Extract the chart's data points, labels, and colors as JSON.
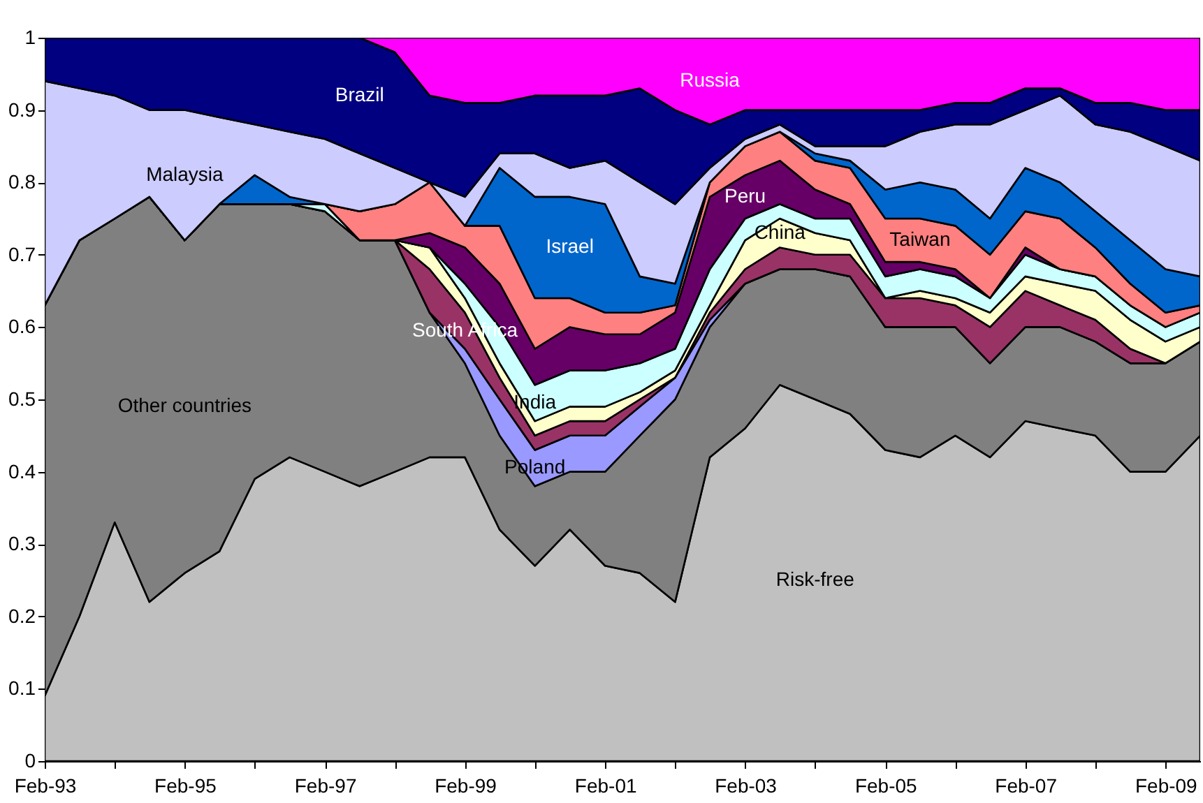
{
  "chart_data": {
    "type": "area",
    "stacked": true,
    "legend": false,
    "grid": false,
    "x": [
      "1993-02",
      "1993-08",
      "1994-02",
      "1994-08",
      "1995-02",
      "1995-08",
      "1996-02",
      "1996-08",
      "1997-02",
      "1997-08",
      "1998-02",
      "1998-08",
      "1999-02",
      "1999-08",
      "2000-02",
      "2000-08",
      "2001-02",
      "2001-08",
      "2002-02",
      "2002-08",
      "2003-02",
      "2003-08",
      "2004-02",
      "2004-08",
      "2005-02",
      "2005-08",
      "2006-02",
      "2006-08",
      "2007-02",
      "2007-08",
      "2008-02",
      "2008-08",
      "2009-02",
      "2009-08"
    ],
    "xlim": [
      "1993-02",
      "2009-08"
    ],
    "xticks": [
      {
        "value": "1993-02",
        "label": "Feb-93"
      },
      {
        "value": "1994-02",
        "label": null
      },
      {
        "value": "1995-02",
        "label": "Feb-95"
      },
      {
        "value": "1996-02",
        "label": null
      },
      {
        "value": "1997-02",
        "label": "Feb-97"
      },
      {
        "value": "1998-02",
        "label": null
      },
      {
        "value": "1999-02",
        "label": "Feb-99"
      },
      {
        "value": "2000-02",
        "label": null
      },
      {
        "value": "2001-02",
        "label": "Feb-01"
      },
      {
        "value": "2002-02",
        "label": null
      },
      {
        "value": "2003-02",
        "label": "Feb-03"
      },
      {
        "value": "2004-02",
        "label": null
      },
      {
        "value": "2005-02",
        "label": "Feb-05"
      },
      {
        "value": "2006-02",
        "label": null
      },
      {
        "value": "2007-02",
        "label": "Feb-07"
      },
      {
        "value": "2008-02",
        "label": null
      },
      {
        "value": "2009-02",
        "label": "Feb-09"
      }
    ],
    "ylim": [
      0,
      1
    ],
    "yticks": [
      0,
      0.1,
      0.2,
      0.3,
      0.4,
      0.5,
      0.6,
      0.7,
      0.8,
      0.9,
      1
    ],
    "series": [
      {
        "name": "Risk-free",
        "color": "#c0c0c0",
        "values": [
          0.09,
          0.2,
          0.33,
          0.22,
          0.26,
          0.29,
          0.39,
          0.42,
          0.4,
          0.38,
          0.4,
          0.42,
          0.42,
          0.32,
          0.27,
          0.32,
          0.27,
          0.26,
          0.22,
          0.42,
          0.46,
          0.52,
          0.5,
          0.48,
          0.43,
          0.42,
          0.45,
          0.42,
          0.47,
          0.46,
          0.45,
          0.4,
          0.4,
          0.45
        ]
      },
      {
        "name": "Other countries",
        "color": "#808080",
        "values": [
          0.54,
          0.52,
          0.42,
          0.56,
          0.46,
          0.48,
          0.38,
          0.35,
          0.36,
          0.34,
          0.32,
          0.2,
          0.13,
          0.13,
          0.11,
          0.08,
          0.13,
          0.19,
          0.28,
          0.18,
          0.2,
          0.16,
          0.18,
          0.19,
          0.17,
          0.18,
          0.15,
          0.13,
          0.13,
          0.14,
          0.13,
          0.15,
          0.15,
          0.13
        ]
      },
      {
        "name": "Poland",
        "color": "#9999ff",
        "values": [
          0,
          0,
          0,
          0,
          0,
          0,
          0,
          0,
          0,
          0,
          0,
          0,
          0.02,
          0.05,
          0.05,
          0.05,
          0.05,
          0.04,
          0.03,
          0.01,
          0,
          0,
          0,
          0,
          0,
          0,
          0,
          0,
          0,
          0,
          0,
          0,
          0,
          0
        ]
      },
      {
        "name": "South Africa",
        "color": "#993366",
        "values": [
          0,
          0,
          0,
          0,
          0,
          0,
          0,
          0,
          0,
          0,
          0,
          0.06,
          0.05,
          0.03,
          0.02,
          0.02,
          0.02,
          0.01,
          0,
          0.01,
          0.02,
          0.03,
          0.02,
          0.03,
          0.04,
          0.04,
          0.03,
          0.05,
          0.05,
          0.03,
          0.03,
          0.02,
          0,
          0
        ]
      },
      {
        "name": "China",
        "color": "#ffffcc",
        "values": [
          0,
          0,
          0,
          0,
          0,
          0,
          0,
          0,
          0,
          0,
          0,
          0.03,
          0.02,
          0.02,
          0.02,
          0.02,
          0.02,
          0.01,
          0.01,
          0.01,
          0.04,
          0.04,
          0.03,
          0.02,
          0,
          0.01,
          0.01,
          0.02,
          0.02,
          0.03,
          0.04,
          0.04,
          0.03,
          0.02
        ]
      },
      {
        "name": "India",
        "color": "#ccffff",
        "values": [
          0,
          0,
          0,
          0,
          0,
          0,
          0,
          0,
          0.01,
          0,
          0,
          0,
          0.02,
          0.05,
          0.05,
          0.05,
          0.05,
          0.04,
          0.03,
          0.05,
          0.03,
          0.02,
          0.02,
          0.03,
          0.03,
          0.03,
          0.03,
          0.02,
          0.03,
          0.02,
          0.02,
          0.02,
          0.02,
          0.02
        ]
      },
      {
        "name": "Peru",
        "color": "#660066",
        "values": [
          0,
          0,
          0,
          0,
          0,
          0,
          0,
          0,
          0,
          0,
          0,
          0.02,
          0.05,
          0.06,
          0.05,
          0.06,
          0.05,
          0.04,
          0.05,
          0.1,
          0.06,
          0.06,
          0.04,
          0.02,
          0.02,
          0.01,
          0.01,
          0,
          0.01,
          0,
          0,
          0,
          0,
          0
        ]
      },
      {
        "name": "Taiwan",
        "color": "#ff8080",
        "values": [
          0,
          0,
          0,
          0,
          0,
          0,
          0,
          0,
          0,
          0.04,
          0.05,
          0.07,
          0.03,
          0.08,
          0.07,
          0.04,
          0.03,
          0.03,
          0.01,
          0.02,
          0.04,
          0.04,
          0.04,
          0.05,
          0.06,
          0.06,
          0.06,
          0.06,
          0.05,
          0.07,
          0.04,
          0.03,
          0.02,
          0.01
        ]
      },
      {
        "name": "Israel",
        "color": "#0066cc",
        "values": [
          0,
          0,
          0,
          0,
          0,
          0,
          0.04,
          0.01,
          0,
          0,
          0,
          0,
          0,
          0.08,
          0.14,
          0.14,
          0.15,
          0.05,
          0.03,
          0,
          0,
          0,
          0.01,
          0.01,
          0.04,
          0.05,
          0.05,
          0.05,
          0.06,
          0.05,
          0.05,
          0.06,
          0.06,
          0.04
        ]
      },
      {
        "name": "Malaysia",
        "color": "#ccccff",
        "values": [
          0.31,
          0.21,
          0.17,
          0.12,
          0.18,
          0.12,
          0.07,
          0.09,
          0.09,
          0.08,
          0.05,
          0,
          0.04,
          0.02,
          0.06,
          0.04,
          0.06,
          0.13,
          0.11,
          0.02,
          0.01,
          0.01,
          0.01,
          0.02,
          0.06,
          0.07,
          0.09,
          0.13,
          0.08,
          0.12,
          0.12,
          0.15,
          0.17,
          0.16
        ]
      },
      {
        "name": "Brazil",
        "color": "#000080",
        "values": [
          0.06,
          0.07,
          0.08,
          0.1,
          0.1,
          0.11,
          0.12,
          0.13,
          0.14,
          0.16,
          0.16,
          0.12,
          0.13,
          0.07,
          0.08,
          0.1,
          0.09,
          0.13,
          0.13,
          0.06,
          0.04,
          0.02,
          0.05,
          0.05,
          0.05,
          0.03,
          0.03,
          0.03,
          0.03,
          0.01,
          0.03,
          0.04,
          0.05,
          0.07
        ]
      },
      {
        "name": "Russia",
        "color": "#ff00ff",
        "values": [
          0,
          0,
          0,
          0,
          0,
          0,
          0,
          0,
          0,
          0,
          0.02,
          0.08,
          0.09,
          0.09,
          0.08,
          0.08,
          0.08,
          0.07,
          0.1,
          0.12,
          0.1,
          0.1,
          0.1,
          0.1,
          0.1,
          0.1,
          0.09,
          0.09,
          0.07,
          0.07,
          0.09,
          0.09,
          0.1,
          0.1
        ]
      }
    ]
  }
}
